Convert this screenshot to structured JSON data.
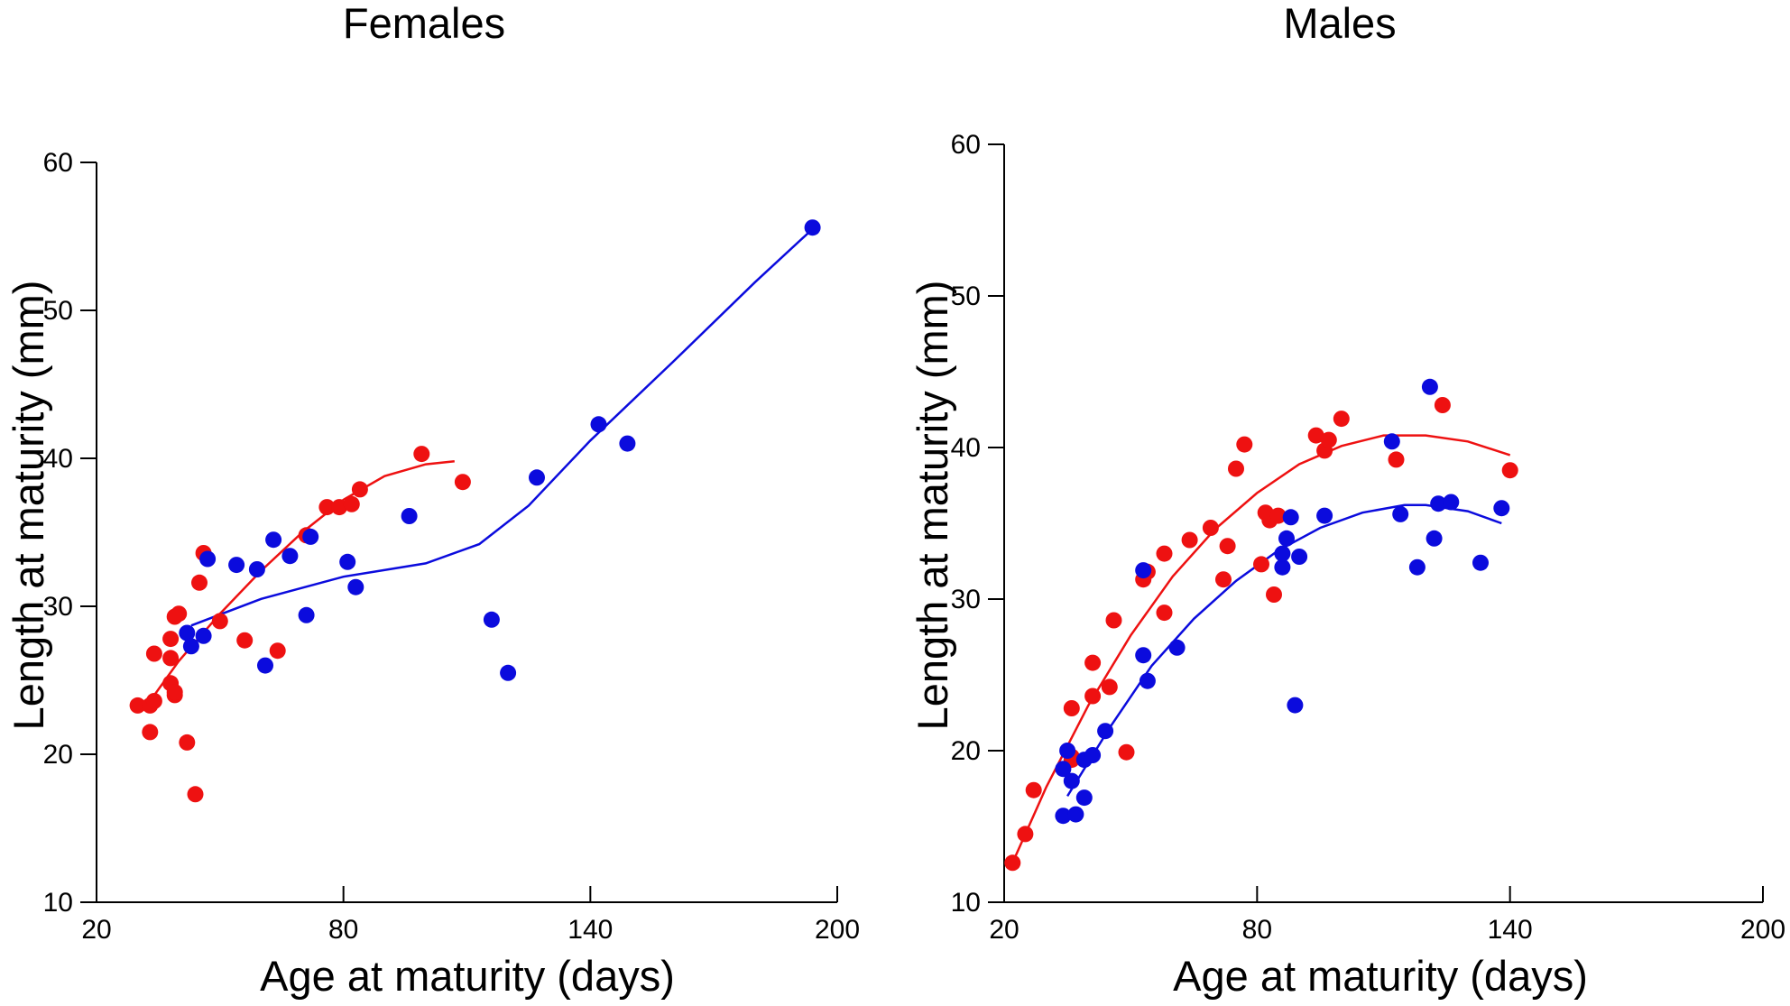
{
  "colors": {
    "red": "#ee1111",
    "blue": "#0b0bdd"
  },
  "chart_data": [
    {
      "type": "scatter",
      "title": "Females",
      "xlabel": "Age at maturity (days)",
      "ylabel": "Length at maturity (mm)",
      "xlim": [
        20,
        200
      ],
      "ylim": [
        10,
        60
      ],
      "xticks": [
        20,
        80,
        140,
        200
      ],
      "yticks": [
        10,
        20,
        30,
        40,
        50,
        60
      ],
      "grid": false,
      "series": [
        {
          "name": "red",
          "color": "#ee1111",
          "points": [
            [
              30,
              23.3
            ],
            [
              33,
              21.5
            ],
            [
              33,
              23.3
            ],
            [
              34,
              23.6
            ],
            [
              34,
              26.8
            ],
            [
              38,
              24.8
            ],
            [
              38,
              26.5
            ],
            [
              38,
              27.8
            ],
            [
              39,
              24.0
            ],
            [
              39,
              24.2
            ],
            [
              39,
              29.3
            ],
            [
              40,
              29.5
            ],
            [
              42,
              20.8
            ],
            [
              44,
              17.3
            ],
            [
              45,
              31.6
            ],
            [
              46,
              33.6
            ],
            [
              50,
              29.0
            ],
            [
              56,
              27.7
            ],
            [
              64,
              27.0
            ],
            [
              71,
              34.8
            ],
            [
              76,
              36.7
            ],
            [
              79,
              36.7
            ],
            [
              82,
              36.9
            ],
            [
              84,
              37.9
            ],
            [
              99,
              40.3
            ],
            [
              109,
              38.4
            ]
          ],
          "trend": [
            [
              33,
              23.6
            ],
            [
              40,
              26.3
            ],
            [
              50,
              29.5
            ],
            [
              60,
              32.4
            ],
            [
              70,
              35.0
            ],
            [
              80,
              37.2
            ],
            [
              90,
              38.8
            ],
            [
              100,
              39.6
            ],
            [
              107,
              39.8
            ]
          ]
        },
        {
          "name": "blue",
          "color": "#0b0bdd",
          "points": [
            [
              42,
              28.2
            ],
            [
              43,
              27.3
            ],
            [
              46,
              28.0
            ],
            [
              47,
              33.2
            ],
            [
              54,
              32.8
            ],
            [
              59,
              32.5
            ],
            [
              61,
              26.0
            ],
            [
              63,
              34.5
            ],
            [
              67,
              33.4
            ],
            [
              71,
              29.4
            ],
            [
              72,
              34.7
            ],
            [
              81,
              33.0
            ],
            [
              83,
              31.3
            ],
            [
              96,
              36.1
            ],
            [
              116,
              29.1
            ],
            [
              120,
              25.5
            ],
            [
              127,
              38.7
            ],
            [
              142,
              42.3
            ],
            [
              149,
              41.0
            ],
            [
              194,
              55.6
            ]
          ],
          "trend": [
            [
              43,
              28.7
            ],
            [
              60,
              30.5
            ],
            [
              80,
              32.0
            ],
            [
              100,
              32.9
            ],
            [
              113,
              34.2
            ],
            [
              125,
              36.8
            ],
            [
              140,
              41.2
            ],
            [
              160,
              46.5
            ],
            [
              180,
              51.9
            ],
            [
              194,
              55.5
            ]
          ]
        }
      ]
    },
    {
      "type": "scatter",
      "title": "Males",
      "xlabel": "Age at maturity (days)",
      "ylabel": "Length at maturity (mm)",
      "xlim": [
        20,
        200
      ],
      "ylim": [
        10,
        60
      ],
      "xticks": [
        20,
        80,
        140,
        200
      ],
      "yticks": [
        10,
        20,
        30,
        40,
        50,
        60
      ],
      "grid": false,
      "series": [
        {
          "name": "red",
          "color": "#ee1111",
          "points": [
            [
              22,
              12.6
            ],
            [
              25,
              14.5
            ],
            [
              27,
              17.4
            ],
            [
              36,
              19.6
            ],
            [
              36,
              19.4
            ],
            [
              36,
              22.8
            ],
            [
              41,
              23.6
            ],
            [
              41,
              25.8
            ],
            [
              45,
              24.2
            ],
            [
              46,
              28.6
            ],
            [
              49,
              19.9
            ],
            [
              53,
              31.3
            ],
            [
              54,
              31.8
            ],
            [
              58,
              29.1
            ],
            [
              58,
              33.0
            ],
            [
              64,
              33.9
            ],
            [
              69,
              34.7
            ],
            [
              72,
              31.3
            ],
            [
              73,
              33.5
            ],
            [
              75,
              38.6
            ],
            [
              77,
              40.2
            ],
            [
              81,
              32.3
            ],
            [
              82,
              35.7
            ],
            [
              83,
              35.2
            ],
            [
              84,
              30.3
            ],
            [
              85,
              35.5
            ],
            [
              94,
              40.8
            ],
            [
              96,
              39.8
            ],
            [
              97,
              40.5
            ],
            [
              100,
              41.9
            ],
            [
              113,
              39.2
            ],
            [
              124,
              42.8
            ],
            [
              140,
              38.5
            ]
          ],
          "trend": [
            [
              22,
              12.6
            ],
            [
              30,
              17.6
            ],
            [
              40,
              23.0
            ],
            [
              50,
              27.6
            ],
            [
              60,
              31.5
            ],
            [
              70,
              34.6
            ],
            [
              80,
              37.0
            ],
            [
              90,
              38.9
            ],
            [
              100,
              40.1
            ],
            [
              110,
              40.8
            ],
            [
              120,
              40.8
            ],
            [
              130,
              40.4
            ],
            [
              140,
              39.5
            ]
          ]
        },
        {
          "name": "blue",
          "color": "#0b0bdd",
          "points": [
            [
              34,
              18.8
            ],
            [
              34,
              15.7
            ],
            [
              35,
              20.0
            ],
            [
              36,
              18.0
            ],
            [
              37,
              15.8
            ],
            [
              39,
              19.4
            ],
            [
              39,
              16.9
            ],
            [
              41,
              19.7
            ],
            [
              44,
              21.3
            ],
            [
              53,
              31.9
            ],
            [
              53,
              26.3
            ],
            [
              54,
              24.6
            ],
            [
              61,
              26.8
            ],
            [
              86,
              32.1
            ],
            [
              86,
              33.0
            ],
            [
              87,
              34.0
            ],
            [
              88,
              35.4
            ],
            [
              89,
              23.0
            ],
            [
              90,
              32.8
            ],
            [
              96,
              35.5
            ],
            [
              112,
              40.4
            ],
            [
              114,
              35.6
            ],
            [
              118,
              32.1
            ],
            [
              121,
              44.0
            ],
            [
              122,
              34.0
            ],
            [
              123,
              36.3
            ],
            [
              126,
              36.4
            ],
            [
              133,
              32.4
            ],
            [
              138,
              36.0
            ]
          ],
          "trend": [
            [
              35,
              17.0
            ],
            [
              45,
              21.5
            ],
            [
              55,
              25.6
            ],
            [
              65,
              28.7
            ],
            [
              75,
              31.2
            ],
            [
              85,
              33.2
            ],
            [
              95,
              34.7
            ],
            [
              105,
              35.7
            ],
            [
              115,
              36.2
            ],
            [
              120,
              36.2
            ],
            [
              130,
              35.8
            ],
            [
              138,
              35.0
            ]
          ]
        }
      ]
    }
  ]
}
